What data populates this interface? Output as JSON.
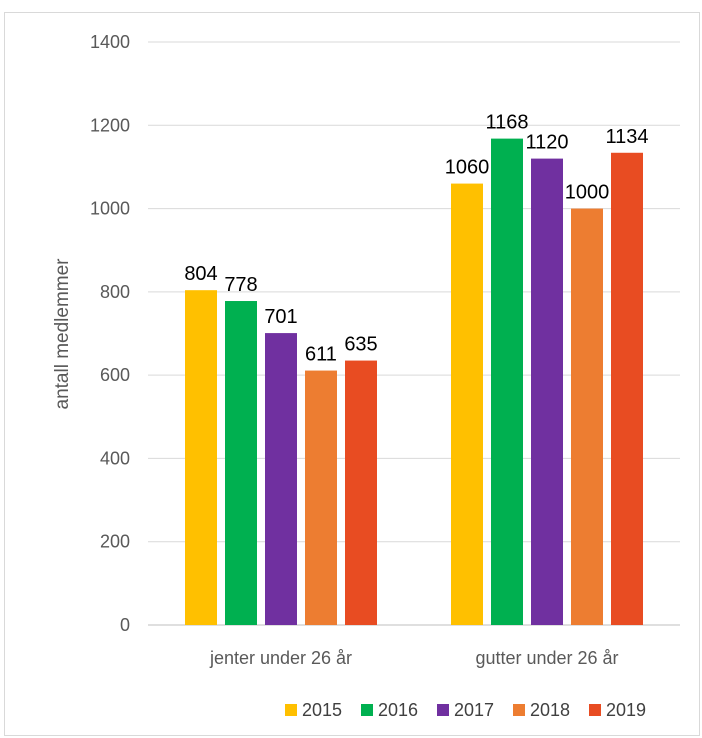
{
  "chart_data": {
    "type": "bar",
    "title": "",
    "xlabel": "",
    "ylabel": "antall medlemmer",
    "ylim": [
      0,
      1400
    ],
    "yticks": [
      0,
      200,
      400,
      600,
      800,
      1000,
      1200,
      1400
    ],
    "grid": true,
    "legend_position": "bottom-right",
    "categories": [
      "jenter under 26 år",
      "gutter under 26 år"
    ],
    "series": [
      {
        "name": "2015",
        "color": "#FFC000",
        "values": [
          804,
          1060
        ]
      },
      {
        "name": "2016",
        "color": "#00B050",
        "values": [
          778,
          1168
        ]
      },
      {
        "name": "2017",
        "color": "#7030A0",
        "values": [
          701,
          1120
        ]
      },
      {
        "name": "2018",
        "color": "#ED7D31",
        "values": [
          611,
          1000
        ]
      },
      {
        "name": "2019",
        "color": "#E84C22",
        "values": [
          635,
          1134
        ]
      }
    ]
  }
}
